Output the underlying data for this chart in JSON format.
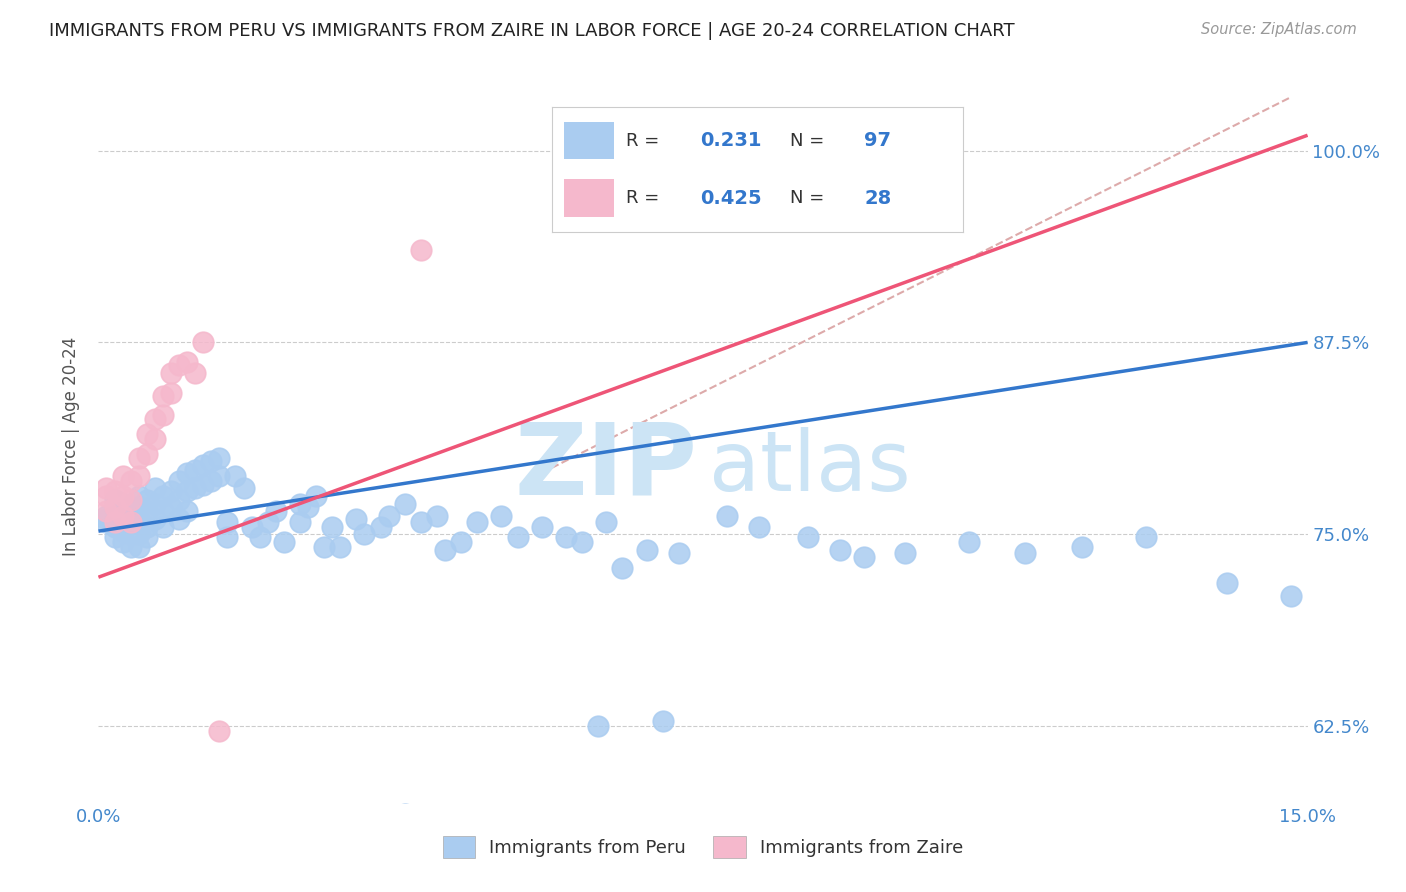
{
  "title": "IMMIGRANTS FROM PERU VS IMMIGRANTS FROM ZAIRE IN LABOR FORCE | AGE 20-24 CORRELATION CHART",
  "source": "Source: ZipAtlas.com",
  "ylabel": "In Labor Force | Age 20-24",
  "xlim": [
    0.0,
    0.15
  ],
  "ylim": [
    0.575,
    1.04
  ],
  "ytick_positions": [
    0.625,
    0.75,
    0.875,
    1.0
  ],
  "ytick_labels": [
    "62.5%",
    "75.0%",
    "87.5%",
    "100.0%"
  ],
  "peru_color": "#aaccf0",
  "zaire_color": "#f5b8cc",
  "peru_line_color": "#3377cc",
  "zaire_line_color": "#ee5577",
  "dashed_line_color": "#ddaaaa",
  "legend_r_peru": "0.231",
  "legend_n_peru": "97",
  "legend_r_zaire": "0.425",
  "legend_n_zaire": "28",
  "peru_trendline_x": [
    0.0,
    0.15
  ],
  "peru_trendline_y": [
    0.752,
    0.875
  ],
  "zaire_trendline_x": [
    0.0,
    0.15
  ],
  "zaire_trendline_y": [
    0.722,
    1.01
  ],
  "dashed_trendline_x": [
    0.055,
    0.148
  ],
  "dashed_trendline_y": [
    0.79,
    1.035
  ],
  "peru_scatter_x": [
    0.001,
    0.001,
    0.001,
    0.002,
    0.002,
    0.002,
    0.002,
    0.003,
    0.003,
    0.003,
    0.003,
    0.003,
    0.004,
    0.004,
    0.004,
    0.004,
    0.005,
    0.005,
    0.005,
    0.005,
    0.005,
    0.006,
    0.006,
    0.006,
    0.006,
    0.007,
    0.007,
    0.007,
    0.008,
    0.008,
    0.008,
    0.009,
    0.009,
    0.01,
    0.01,
    0.01,
    0.011,
    0.011,
    0.011,
    0.012,
    0.012,
    0.013,
    0.013,
    0.014,
    0.014,
    0.015,
    0.015,
    0.016,
    0.016,
    0.017,
    0.018,
    0.019,
    0.02,
    0.021,
    0.022,
    0.023,
    0.025,
    0.025,
    0.026,
    0.027,
    0.028,
    0.029,
    0.03,
    0.032,
    0.033,
    0.035,
    0.036,
    0.038,
    0.04,
    0.042,
    0.043,
    0.045,
    0.047,
    0.05,
    0.052,
    0.055,
    0.058,
    0.06,
    0.063,
    0.065,
    0.068,
    0.072,
    0.078,
    0.082,
    0.088,
    0.092,
    0.095,
    0.1,
    0.108,
    0.115,
    0.122,
    0.13,
    0.14,
    0.148,
    0.062,
    0.07,
    0.038
  ],
  "peru_scatter_y": [
    0.76,
    0.762,
    0.758,
    0.772,
    0.765,
    0.755,
    0.748,
    0.77,
    0.762,
    0.752,
    0.768,
    0.745,
    0.765,
    0.758,
    0.75,
    0.742,
    0.775,
    0.768,
    0.76,
    0.75,
    0.742,
    0.772,
    0.765,
    0.755,
    0.748,
    0.78,
    0.77,
    0.76,
    0.775,
    0.765,
    0.755,
    0.778,
    0.768,
    0.785,
    0.772,
    0.76,
    0.79,
    0.778,
    0.765,
    0.792,
    0.78,
    0.795,
    0.782,
    0.798,
    0.785,
    0.8,
    0.788,
    0.758,
    0.748,
    0.788,
    0.78,
    0.755,
    0.748,
    0.758,
    0.765,
    0.745,
    0.77,
    0.758,
    0.768,
    0.775,
    0.742,
    0.755,
    0.742,
    0.76,
    0.75,
    0.755,
    0.762,
    0.77,
    0.758,
    0.762,
    0.74,
    0.745,
    0.758,
    0.762,
    0.748,
    0.755,
    0.748,
    0.745,
    0.758,
    0.728,
    0.74,
    0.738,
    0.762,
    0.755,
    0.748,
    0.74,
    0.735,
    0.738,
    0.745,
    0.738,
    0.742,
    0.748,
    0.718,
    0.71,
    0.625,
    0.628,
    0.568
  ],
  "zaire_scatter_x": [
    0.001,
    0.001,
    0.001,
    0.002,
    0.002,
    0.002,
    0.003,
    0.003,
    0.003,
    0.004,
    0.004,
    0.004,
    0.005,
    0.005,
    0.006,
    0.006,
    0.007,
    0.007,
    0.008,
    0.008,
    0.009,
    0.009,
    0.01,
    0.011,
    0.012,
    0.013,
    0.015,
    0.04
  ],
  "zaire_scatter_y": [
    0.765,
    0.775,
    0.78,
    0.768,
    0.778,
    0.758,
    0.788,
    0.775,
    0.762,
    0.785,
    0.772,
    0.758,
    0.8,
    0.788,
    0.815,
    0.802,
    0.825,
    0.812,
    0.84,
    0.828,
    0.855,
    0.842,
    0.86,
    0.862,
    0.855,
    0.875,
    0.622,
    0.935
  ]
}
